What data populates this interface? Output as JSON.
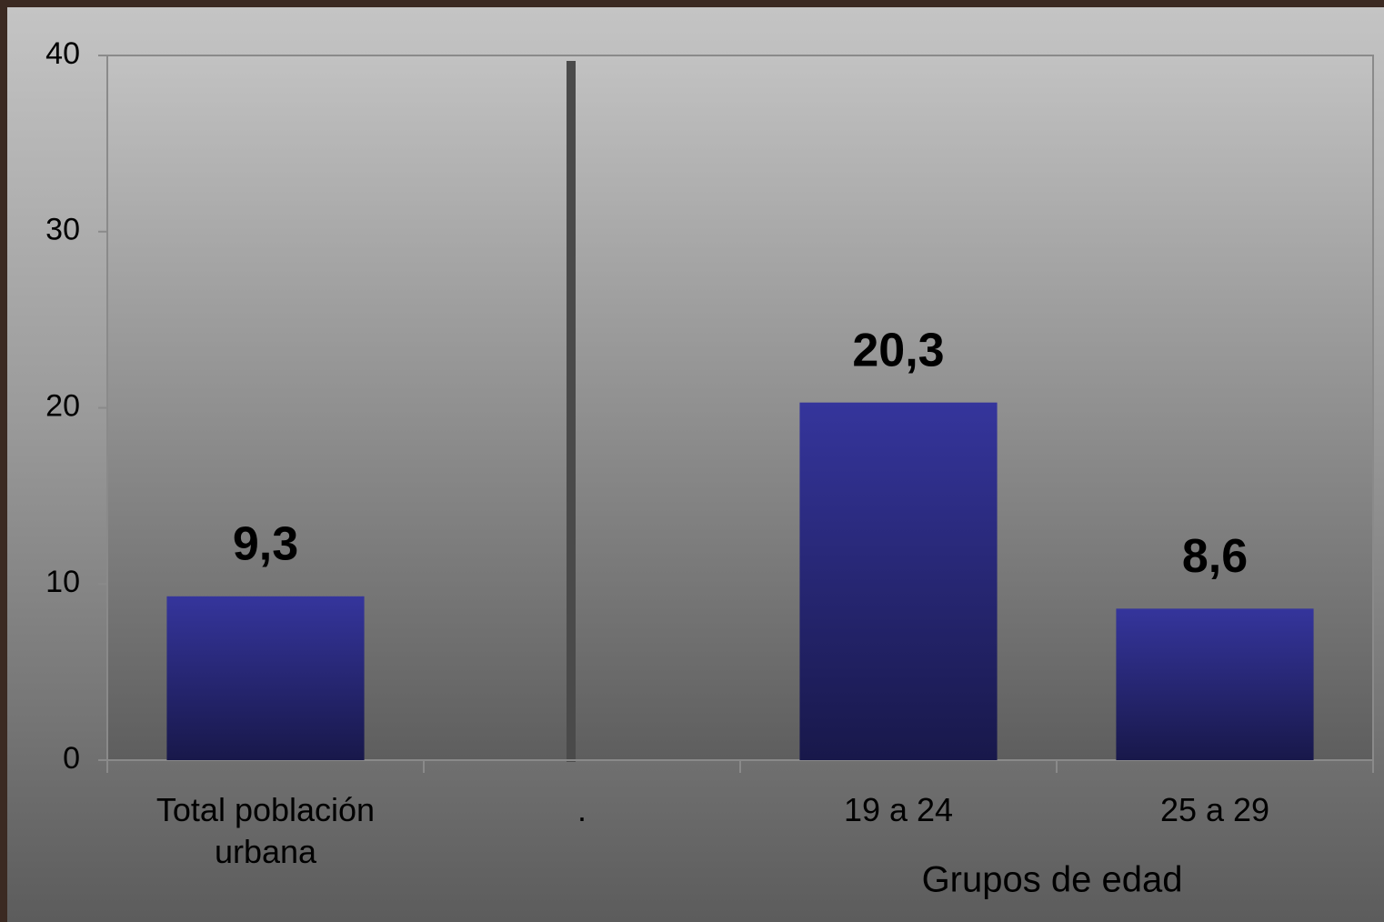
{
  "chart_data": {
    "type": "bar",
    "x_label": "Grupos de edad",
    "categories": [
      "Total población urbana",
      ".",
      "19 a 24",
      "25 a 29"
    ],
    "values": [
      9.3,
      null,
      20.3,
      8.6
    ],
    "value_labels": [
      "9,3",
      null,
      "20,3",
      "8,6"
    ],
    "color": "#343499",
    "ylim": [
      0,
      40
    ],
    "yticks": [
      0,
      10,
      20,
      30,
      40
    ],
    "grid": false
  }
}
